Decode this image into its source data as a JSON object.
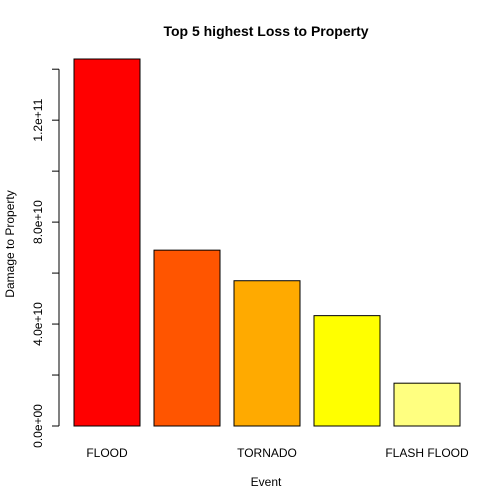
{
  "chart_data": {
    "type": "bar",
    "title": "Top 5 highest Loss to Property",
    "xlabel": "Event",
    "ylabel": "Damage to Property",
    "categories": [
      "FLOOD",
      "",
      "TORNADO",
      "",
      "FLASH FLOOD"
    ],
    "values": [
      144000000000,
      69000000000,
      57000000000,
      43300000000,
      16800000000
    ],
    "bar_colors": [
      "#FF0000",
      "#FF5500",
      "#FFAA00",
      "#FFFF00",
      "#FFFF80"
    ],
    "ylim": [
      0,
      144000000000
    ],
    "y_ticks": [
      0,
      20000000000,
      40000000000,
      60000000000,
      80000000000,
      100000000000,
      120000000000,
      140000000000
    ],
    "y_tick_labels": [
      "0.0e+00",
      "",
      "4.0e+10",
      "",
      "8.0e+10",
      "",
      "1.2e+11",
      ""
    ],
    "grid": false,
    "legend": "none"
  }
}
